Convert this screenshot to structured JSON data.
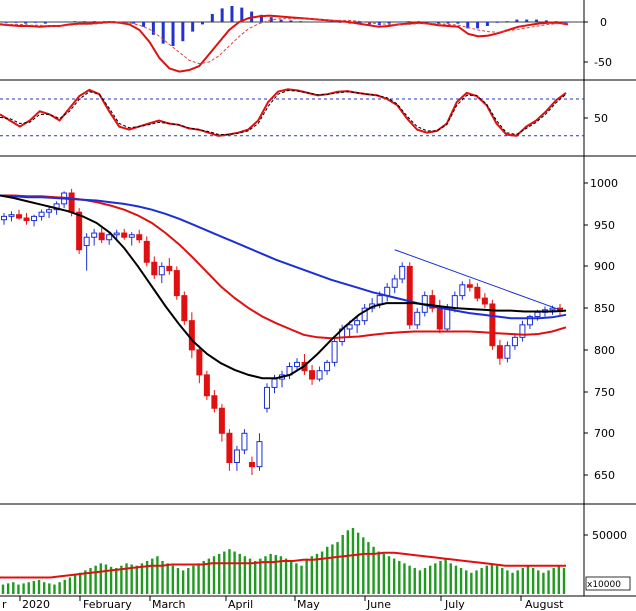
{
  "chart_data": {
    "type": "stock-panels",
    "months": [
      "r",
      "2020",
      "February",
      "March",
      "April",
      "May",
      "June",
      "July",
      "August"
    ],
    "macd": {
      "ticks": [
        "0",
        "-50"
      ],
      "series": [
        {
          "values": [
            -3,
            -4,
            -5,
            -5,
            -6,
            -5,
            -5,
            -3,
            -2,
            -2,
            -1,
            0,
            -1,
            -3,
            -10,
            -25,
            -45,
            -58,
            -62,
            -60,
            -55,
            -40,
            -25,
            -10,
            0,
            5,
            7,
            8,
            7,
            6,
            5,
            4,
            3,
            2,
            1,
            0,
            -2,
            -4,
            -6,
            -5,
            -3,
            -2,
            -1,
            -2,
            -4,
            -5,
            -6,
            -15,
            -18,
            -17,
            -14,
            -10,
            -6,
            -4,
            -2,
            -1,
            -1,
            -3
          ]
        },
        {
          "values": [
            -2,
            -3,
            -3,
            -4,
            -4,
            -5,
            -5,
            -4,
            -3,
            -3,
            -2,
            -1,
            -1,
            -1,
            -4,
            -9,
            -18,
            -28,
            -38,
            -48,
            -52,
            -50,
            -42,
            -30,
            -18,
            -8,
            -2,
            2,
            4,
            4,
            4,
            4,
            3,
            2,
            2,
            2,
            1,
            -1,
            -2,
            -3,
            -3,
            -3,
            -2,
            -2,
            -2,
            -3,
            -4,
            -7,
            -10,
            -12,
            -13,
            -11,
            -9,
            -7,
            -5,
            -3,
            -2,
            -2
          ]
        }
      ],
      "histogram": [
        -1,
        -1,
        -2,
        -1,
        -2,
        0,
        0,
        1,
        1,
        1,
        1,
        1,
        0,
        -2,
        -6,
        -16,
        -27,
        -30,
        -24,
        -12,
        -3,
        10,
        17,
        20,
        18,
        13,
        9,
        6,
        3,
        2,
        1,
        0,
        0,
        0,
        -1,
        -2,
        -3,
        -3,
        -4,
        -2,
        0,
        1,
        1,
        0,
        -2,
        -2,
        -2,
        -8,
        -8,
        -5,
        -1,
        1,
        3,
        3,
        3,
        2,
        1,
        -1
      ]
    },
    "stochastic": {
      "ticks": [
        "50"
      ],
      "bands": [
        80,
        20
      ],
      "series": [
        {
          "values": [
            55,
            45,
            35,
            45,
            60,
            55,
            45,
            65,
            85,
            95,
            88,
            60,
            35,
            30,
            35,
            40,
            45,
            40,
            38,
            32,
            30,
            25,
            20,
            22,
            25,
            30,
            45,
            75,
            92,
            96,
            94,
            90,
            86,
            88,
            92,
            93,
            90,
            88,
            86,
            80,
            70,
            48,
            30,
            25,
            28,
            40,
            75,
            90,
            85,
            70,
            40,
            22,
            20,
            35,
            45,
            60,
            78,
            90
          ]
        },
        {
          "values": [
            50,
            48,
            40,
            42,
            55,
            55,
            48,
            60,
            80,
            92,
            88,
            65,
            40,
            33,
            35,
            38,
            42,
            40,
            38,
            33,
            30,
            27,
            22,
            22,
            24,
            28,
            40,
            68,
            88,
            94,
            93,
            90,
            87,
            88,
            90,
            92,
            90,
            88,
            86,
            82,
            72,
            52,
            35,
            28,
            28,
            38,
            70,
            86,
            86,
            72,
            45,
            25,
            22,
            32,
            42,
            56,
            74,
            88
          ]
        }
      ]
    },
    "price": {
      "ticks": [
        "1000",
        "950",
        "900",
        "850",
        "800",
        "750",
        "700",
        "650"
      ],
      "ylim": [
        620,
        1010
      ],
      "candles": [
        {
          "o": 956,
          "h": 964,
          "l": 950,
          "c": 960
        },
        {
          "o": 960,
          "h": 966,
          "l": 954,
          "c": 962
        },
        {
          "o": 962,
          "h": 968,
          "l": 956,
          "c": 958
        },
        {
          "o": 958,
          "h": 964,
          "l": 950,
          "c": 955
        },
        {
          "o": 955,
          "h": 962,
          "l": 948,
          "c": 960
        },
        {
          "o": 960,
          "h": 968,
          "l": 955,
          "c": 965
        },
        {
          "o": 965,
          "h": 972,
          "l": 958,
          "c": 968
        },
        {
          "o": 968,
          "h": 978,
          "l": 962,
          "c": 975
        },
        {
          "o": 975,
          "h": 990,
          "l": 970,
          "c": 988
        },
        {
          "o": 988,
          "h": 993,
          "l": 960,
          "c": 965
        },
        {
          "o": 965,
          "h": 970,
          "l": 915,
          "c": 920
        },
        {
          "o": 925,
          "h": 940,
          "l": 895,
          "c": 935
        },
        {
          "o": 935,
          "h": 945,
          "l": 925,
          "c": 940
        },
        {
          "o": 940,
          "h": 946,
          "l": 928,
          "c": 932
        },
        {
          "o": 932,
          "h": 942,
          "l": 926,
          "c": 938
        },
        {
          "o": 938,
          "h": 944,
          "l": 930,
          "c": 940
        },
        {
          "o": 940,
          "h": 945,
          "l": 932,
          "c": 935
        },
        {
          "o": 935,
          "h": 941,
          "l": 925,
          "c": 938
        },
        {
          "o": 938,
          "h": 944,
          "l": 928,
          "c": 932
        },
        {
          "o": 930,
          "h": 936,
          "l": 900,
          "c": 905
        },
        {
          "o": 905,
          "h": 912,
          "l": 885,
          "c": 890
        },
        {
          "o": 890,
          "h": 905,
          "l": 880,
          "c": 900
        },
        {
          "o": 900,
          "h": 910,
          "l": 890,
          "c": 895
        },
        {
          "o": 895,
          "h": 900,
          "l": 860,
          "c": 865
        },
        {
          "o": 865,
          "h": 870,
          "l": 830,
          "c": 835
        },
        {
          "o": 835,
          "h": 845,
          "l": 790,
          "c": 800
        },
        {
          "o": 800,
          "h": 805,
          "l": 760,
          "c": 770
        },
        {
          "o": 770,
          "h": 775,
          "l": 740,
          "c": 745
        },
        {
          "o": 745,
          "h": 752,
          "l": 725,
          "c": 730
        },
        {
          "o": 730,
          "h": 735,
          "l": 690,
          "c": 700
        },
        {
          "o": 700,
          "h": 705,
          "l": 655,
          "c": 665
        },
        {
          "o": 665,
          "h": 685,
          "l": 655,
          "c": 680
        },
        {
          "o": 680,
          "h": 705,
          "l": 675,
          "c": 700
        },
        {
          "o": 665,
          "h": 672,
          "l": 650,
          "c": 660
        },
        {
          "o": 660,
          "h": 700,
          "l": 655,
          "c": 690
        },
        {
          "o": 730,
          "h": 760,
          "l": 725,
          "c": 755
        },
        {
          "o": 755,
          "h": 770,
          "l": 748,
          "c": 765
        },
        {
          "o": 765,
          "h": 775,
          "l": 755,
          "c": 770
        },
        {
          "o": 770,
          "h": 785,
          "l": 765,
          "c": 780
        },
        {
          "o": 780,
          "h": 790,
          "l": 775,
          "c": 785
        },
        {
          "o": 785,
          "h": 795,
          "l": 770,
          "c": 775
        },
        {
          "o": 775,
          "h": 782,
          "l": 758,
          "c": 765
        },
        {
          "o": 765,
          "h": 780,
          "l": 762,
          "c": 775
        },
        {
          "o": 775,
          "h": 788,
          "l": 770,
          "c": 785
        },
        {
          "o": 785,
          "h": 815,
          "l": 780,
          "c": 810
        },
        {
          "o": 810,
          "h": 830,
          "l": 805,
          "c": 825
        },
        {
          "o": 825,
          "h": 835,
          "l": 815,
          "c": 830
        },
        {
          "o": 830,
          "h": 840,
          "l": 820,
          "c": 835
        },
        {
          "o": 835,
          "h": 855,
          "l": 830,
          "c": 850
        },
        {
          "o": 850,
          "h": 862,
          "l": 845,
          "c": 855
        },
        {
          "o": 855,
          "h": 870,
          "l": 850,
          "c": 865
        },
        {
          "o": 865,
          "h": 880,
          "l": 858,
          "c": 875
        },
        {
          "o": 875,
          "h": 890,
          "l": 868,
          "c": 885
        },
        {
          "o": 885,
          "h": 905,
          "l": 880,
          "c": 900
        },
        {
          "o": 900,
          "h": 905,
          "l": 825,
          "c": 830
        },
        {
          "o": 830,
          "h": 850,
          "l": 825,
          "c": 845
        },
        {
          "o": 845,
          "h": 870,
          "l": 840,
          "c": 865
        },
        {
          "o": 865,
          "h": 872,
          "l": 845,
          "c": 850
        },
        {
          "o": 850,
          "h": 860,
          "l": 820,
          "c": 825
        },
        {
          "o": 825,
          "h": 855,
          "l": 822,
          "c": 850
        },
        {
          "o": 850,
          "h": 870,
          "l": 845,
          "c": 865
        },
        {
          "o": 865,
          "h": 882,
          "l": 860,
          "c": 878
        },
        {
          "o": 878,
          "h": 885,
          "l": 870,
          "c": 875
        },
        {
          "o": 875,
          "h": 880,
          "l": 858,
          "c": 862
        },
        {
          "o": 862,
          "h": 868,
          "l": 850,
          "c": 855
        },
        {
          "o": 855,
          "h": 860,
          "l": 800,
          "c": 805
        },
        {
          "o": 805,
          "h": 812,
          "l": 782,
          "c": 790
        },
        {
          "o": 790,
          "h": 810,
          "l": 785,
          "c": 805
        },
        {
          "o": 805,
          "h": 820,
          "l": 800,
          "c": 815
        },
        {
          "o": 815,
          "h": 835,
          "l": 810,
          "c": 830
        },
        {
          "o": 830,
          "h": 842,
          "l": 825,
          "c": 840
        },
        {
          "o": 840,
          "h": 848,
          "l": 835,
          "c": 845
        },
        {
          "o": 845,
          "h": 852,
          "l": 840,
          "c": 848
        },
        {
          "o": 848,
          "h": 853,
          "l": 842,
          "c": 850
        },
        {
          "o": 850,
          "h": 855,
          "l": 840,
          "c": 846
        }
      ],
      "ma_red": [
        985,
        985,
        984,
        984,
        983,
        982,
        980,
        977,
        973,
        968,
        961,
        952,
        940,
        926,
        910,
        893,
        876,
        862,
        850,
        840,
        832,
        825,
        818,
        815,
        814,
        815,
        816,
        818,
        820,
        821,
        822,
        822,
        822,
        822,
        822,
        821,
        820,
        819,
        818,
        819,
        822,
        827
      ],
      "ma_blue": [
        985,
        984,
        983,
        983,
        982,
        981,
        980,
        979,
        977,
        975,
        972,
        968,
        963,
        957,
        950,
        943,
        936,
        929,
        922,
        915,
        908,
        902,
        896,
        890,
        884,
        879,
        874,
        869,
        865,
        861,
        857,
        853,
        850,
        847,
        844,
        842,
        840,
        838,
        838,
        838,
        839,
        842
      ],
      "ma_black": [
        985,
        982,
        978,
        974,
        970,
        966,
        960,
        952,
        940,
        922,
        900,
        876,
        852,
        830,
        810,
        795,
        784,
        776,
        770,
        766,
        766,
        770,
        780,
        795,
        812,
        828,
        842,
        852,
        856,
        856,
        856,
        854,
        852,
        850,
        849,
        848,
        847,
        847,
        846,
        846,
        846,
        847
      ],
      "trendline": [
        {
          "x": 52,
          "y": 920
        },
        {
          "x": 74,
          "y": 848
        }
      ]
    },
    "volume": {
      "ticks": [
        "50000"
      ],
      "unit": "x10000",
      "values": [
        8,
        9,
        10,
        8,
        9,
        10,
        11,
        12,
        10,
        9,
        8,
        10,
        12,
        14,
        16,
        18,
        20,
        22,
        24,
        26,
        25,
        23,
        22,
        24,
        26,
        25,
        24,
        26,
        28,
        30,
        32,
        28,
        26,
        24,
        22,
        20,
        22,
        24,
        26,
        28,
        30,
        32,
        34,
        36,
        38,
        36,
        34,
        32,
        30,
        28,
        30,
        32,
        34,
        33,
        32,
        30,
        28,
        26,
        24,
        30,
        32,
        34,
        36,
        40,
        42,
        44,
        50,
        54,
        56,
        52,
        48,
        44,
        40,
        36,
        34,
        32,
        30,
        28,
        26,
        24,
        22,
        20,
        22,
        24,
        26,
        28,
        30,
        26,
        24,
        22,
        20,
        18,
        20,
        22,
        24,
        26,
        24,
        22,
        20,
        18,
        20,
        22,
        24,
        22,
        20,
        18,
        20,
        22,
        24,
        22
      ],
      "ma": [
        14,
        14,
        14,
        14,
        14,
        14,
        15,
        16,
        17,
        18,
        19,
        20,
        21,
        22,
        23,
        24,
        24,
        25,
        25,
        25,
        25,
        26,
        26,
        26,
        26,
        26,
        27,
        27,
        28,
        28,
        29,
        29,
        30,
        31,
        32,
        33,
        34,
        34,
        35,
        35,
        34,
        33,
        32,
        31,
        30,
        29,
        28,
        27,
        26,
        25,
        24,
        24,
        24,
        24,
        24,
        24,
        24
      ]
    }
  }
}
